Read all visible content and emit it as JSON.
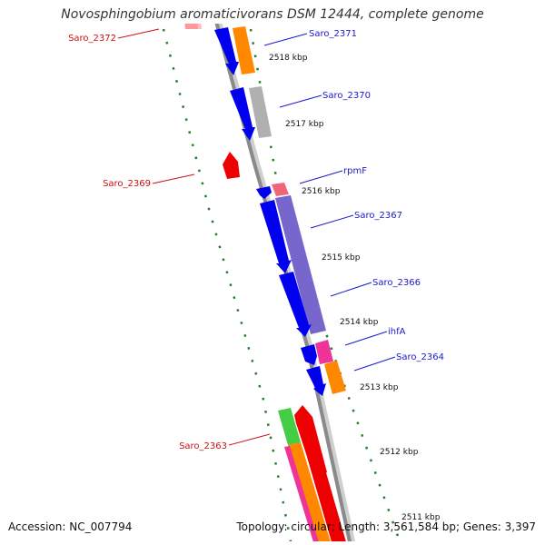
{
  "title": "Novosphingobium aromaticivorans DSM 12444, complete genome",
  "footer": {
    "accession": "Accession: NC_007794",
    "summary": "Topology: circular; Length: 3,561,584 bp; Genes: 3,397"
  },
  "colors": {
    "backbone": "#8a8a8a",
    "tick": "#2a7f2a",
    "label_forward": "#1a1acc",
    "label_reverse": "#cc1111"
  },
  "ticks": [
    {
      "label": "2518 kbp"
    },
    {
      "label": "2517 kbp"
    },
    {
      "label": "2516 kbp"
    },
    {
      "label": "2515 kbp"
    },
    {
      "label": "2514 kbp"
    },
    {
      "label": "2513 kbp"
    },
    {
      "label": "2512 kbp"
    },
    {
      "label": "2511 kbp"
    }
  ],
  "genes": [
    {
      "name": "Saro_2372",
      "strand": "reverse",
      "color": "#ff9999"
    },
    {
      "name": "Saro_2371",
      "strand": "forward",
      "color": "#0000ee"
    },
    {
      "name": "Saro_2370",
      "strand": "forward",
      "color": "#0000ee"
    },
    {
      "name": "Saro_2369",
      "strand": "reverse",
      "color": "#ee0000"
    },
    {
      "name": "rpmF",
      "strand": "forward",
      "color": "#0000ee"
    },
    {
      "name": "Saro_2367",
      "strand": "forward",
      "color": "#0000ee"
    },
    {
      "name": "Saro_2366",
      "strand": "forward",
      "color": "#0000ee"
    },
    {
      "name": "ihfA",
      "strand": "forward",
      "color": "#0000ee"
    },
    {
      "name": "Saro_2364",
      "strand": "forward",
      "color": "#0000ee"
    },
    {
      "name": "Saro_2363",
      "strand": "reverse",
      "color": "#ee0000"
    }
  ],
  "cog_blocks": [
    {
      "gene": "Saro_2372",
      "color": "#ffbbbb"
    },
    {
      "gene": "Saro_2371",
      "color": "#ff8800"
    },
    {
      "gene": "Saro_2370",
      "color": "#b0b0b0"
    },
    {
      "gene": "rpmF",
      "color": "#ee6677"
    },
    {
      "gene": "Saro_2367",
      "color": "#7766cc"
    },
    {
      "gene": "ihfA",
      "color": "#ee3399"
    },
    {
      "gene": "Saro_2364",
      "color": "#ff8800"
    },
    {
      "gene": "Saro_2363",
      "color": "#44cc44"
    }
  ]
}
